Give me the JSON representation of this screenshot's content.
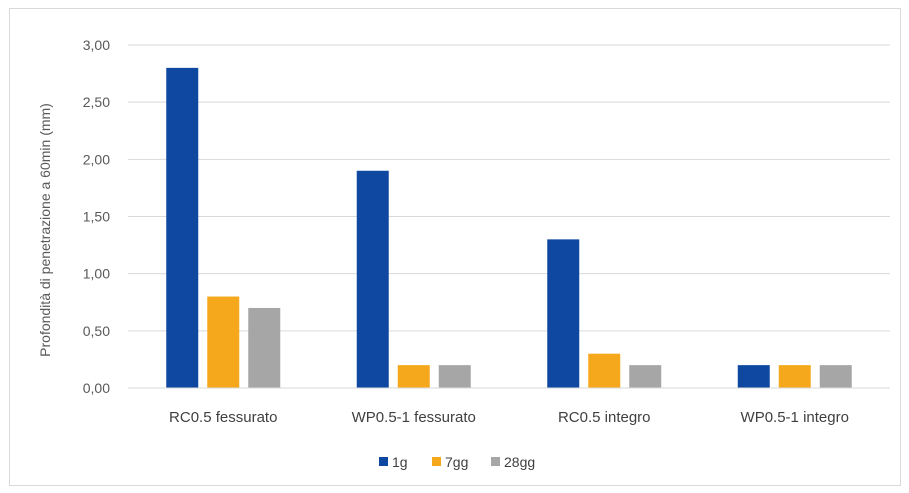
{
  "chart_data": {
    "type": "bar",
    "ylabel": "Profondità di penetrazione a 60min (mm)",
    "ylim": [
      0,
      3
    ],
    "yticks": [
      "0,00",
      "0,50",
      "1,00",
      "1,50",
      "2,00",
      "2,50",
      "3,00"
    ],
    "categories": [
      "RC0.5 fessurato",
      "WP0.5-1 fessurato",
      "RC0.5 integro",
      "WP0.5-1 integro"
    ],
    "series": [
      {
        "name": "1g",
        "color": "#0e48a0",
        "values": [
          2.8,
          1.9,
          1.3,
          0.2
        ]
      },
      {
        "name": "7gg",
        "color": "#f5a81b",
        "values": [
          0.8,
          0.2,
          0.3,
          0.2
        ]
      },
      {
        "name": "28gg",
        "color": "#a6a6a6",
        "values": [
          0.7,
          0.2,
          0.2,
          0.2
        ]
      }
    ],
    "legend_position": "bottom",
    "grid": true
  }
}
